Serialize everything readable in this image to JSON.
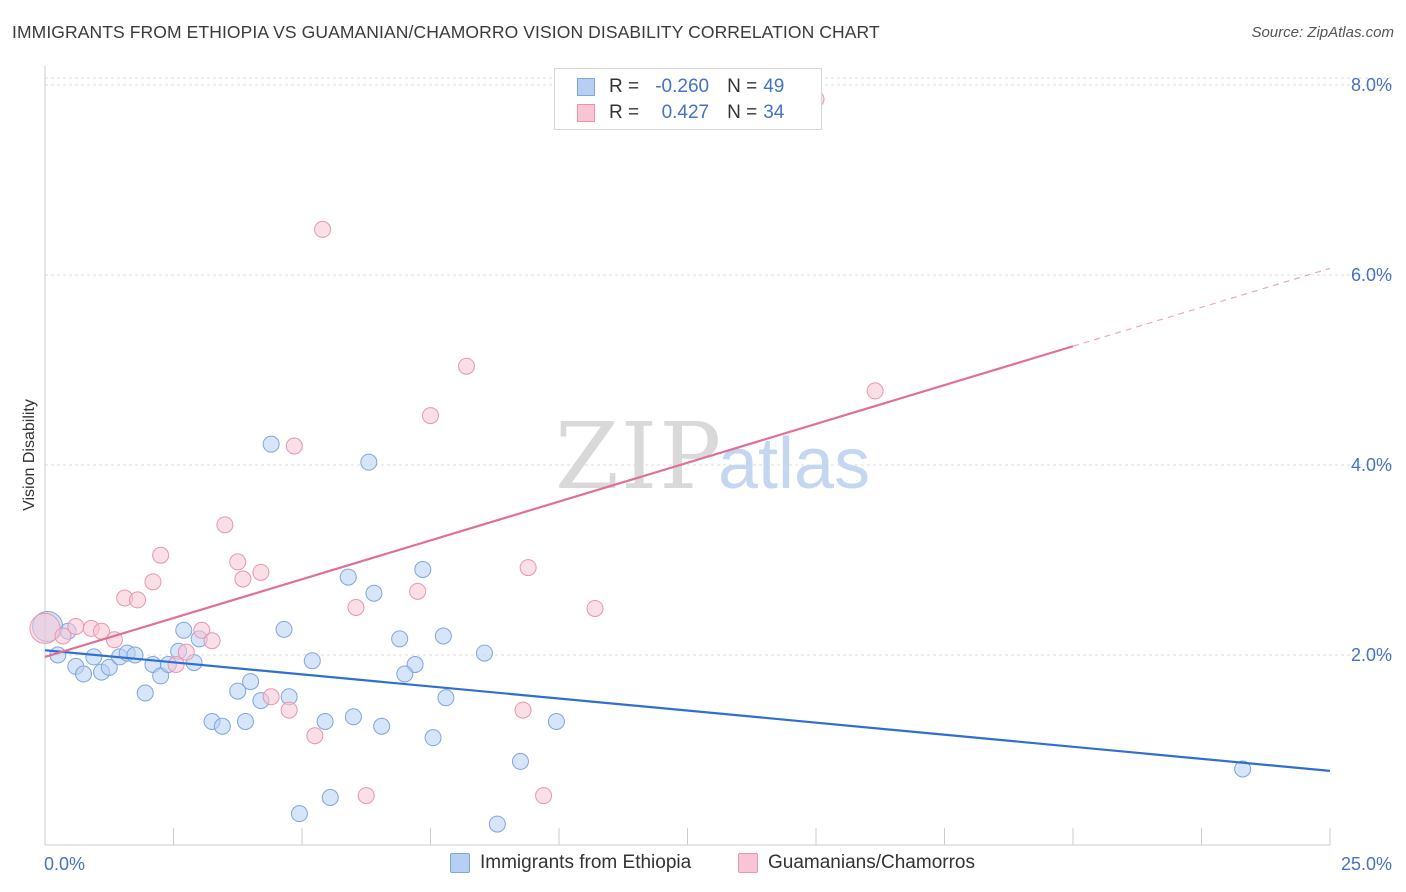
{
  "header": {
    "title": "IMMIGRANTS FROM ETHIOPIA VS GUAMANIAN/CHAMORRO VISION DISABILITY CORRELATION CHART",
    "source": "Source: ZipAtlas.com"
  },
  "watermark": {
    "zip": "ZIP",
    "atlas": "atlas"
  },
  "legend": {
    "r_key": "R =",
    "n_key": "N =",
    "rows": [
      {
        "name": "Immigrants from Ethiopia",
        "r": "-0.260",
        "n": "49"
      },
      {
        "name": "Guamanians/Chamorros",
        "r": "0.427",
        "n": "34"
      }
    ]
  },
  "colors": {
    "blue_fill": "#b7cff3",
    "blue_stroke": "#7fa6e0",
    "blue_line": "#2f6fd0",
    "pink_fill": "#f7c5d3",
    "pink_stroke": "#e995b0",
    "pink_line": "#e07099",
    "grid": "#dddddd",
    "axis": "#cccccc",
    "tick_text": "#4472c4"
  },
  "chart_data": {
    "type": "scatter",
    "title": "IMMIGRANTS FROM ETHIOPIA VS GUAMANIAN/CHAMORRO VISION DISABILITY CORRELATION CHART",
    "xlabel": "",
    "ylabel": "Vision Disability",
    "xlim": [
      0,
      25
    ],
    "ylim": [
      0,
      8.2
    ],
    "x_tick_labels": [
      "0.0%",
      "25.0%"
    ],
    "y_ticks": [
      2,
      4,
      6,
      8
    ],
    "y_tick_labels": [
      "2.0%",
      "4.0%",
      "6.0%",
      "8.0%"
    ],
    "grid": true,
    "legend_position": "top-center",
    "series": [
      {
        "name": "Immigrants from Ethiopia",
        "r": -0.26,
        "n": 49,
        "trend": {
          "x0": 0.0,
          "y0": 2.05,
          "x1": 25.0,
          "y1": 0.78
        },
        "points": [
          [
            0.05,
            2.3
          ],
          [
            0.25,
            2.0
          ],
          [
            0.45,
            2.25
          ],
          [
            0.6,
            1.88
          ],
          [
            0.75,
            1.8
          ],
          [
            0.95,
            1.98
          ],
          [
            1.1,
            1.82
          ],
          [
            1.25,
            1.87
          ],
          [
            1.45,
            1.98
          ],
          [
            1.6,
            2.02
          ],
          [
            1.75,
            2.0
          ],
          [
            1.95,
            1.6
          ],
          [
            2.1,
            1.9
          ],
          [
            2.25,
            1.78
          ],
          [
            2.4,
            1.9
          ],
          [
            2.6,
            2.04
          ],
          [
            2.7,
            2.26
          ],
          [
            2.9,
            1.92
          ],
          [
            3.0,
            2.17
          ],
          [
            3.25,
            1.3
          ],
          [
            3.45,
            1.25
          ],
          [
            3.75,
            1.62
          ],
          [
            3.9,
            1.3
          ],
          [
            4.0,
            1.72
          ],
          [
            4.2,
            1.52
          ],
          [
            4.4,
            4.22
          ],
          [
            4.65,
            2.27
          ],
          [
            4.75,
            1.56
          ],
          [
            4.95,
            0.33
          ],
          [
            5.2,
            1.94
          ],
          [
            5.45,
            1.3
          ],
          [
            5.55,
            0.5
          ],
          [
            5.9,
            2.82
          ],
          [
            6.0,
            1.35
          ],
          [
            6.3,
            4.03
          ],
          [
            6.4,
            2.65
          ],
          [
            6.55,
            1.25
          ],
          [
            6.9,
            2.17
          ],
          [
            7.2,
            1.9
          ],
          [
            7.0,
            1.8
          ],
          [
            7.35,
            2.9
          ],
          [
            7.55,
            1.13
          ],
          [
            7.75,
            2.2
          ],
          [
            7.8,
            1.55
          ],
          [
            8.55,
            2.02
          ],
          [
            8.8,
            0.22
          ],
          [
            9.25,
            0.88
          ],
          [
            9.95,
            1.3
          ],
          [
            23.3,
            0.8
          ]
        ]
      },
      {
        "name": "Guamanians/Chamorros",
        "r": 0.427,
        "n": 34,
        "trend": {
          "x0": 0.0,
          "y0": 1.98,
          "x1": 20.0,
          "y1": 5.25,
          "dash_to_x": 25.0,
          "dash_to_y": 6.07
        },
        "points": [
          [
            0.0,
            2.28
          ],
          [
            0.35,
            2.2
          ],
          [
            0.6,
            2.3
          ],
          [
            0.9,
            2.28
          ],
          [
            1.1,
            2.25
          ],
          [
            1.35,
            2.16
          ],
          [
            1.55,
            2.6
          ],
          [
            1.8,
            2.58
          ],
          [
            2.1,
            2.77
          ],
          [
            2.25,
            3.05
          ],
          [
            2.55,
            1.9
          ],
          [
            2.75,
            2.03
          ],
          [
            3.05,
            2.26
          ],
          [
            3.25,
            2.15
          ],
          [
            3.5,
            3.37
          ],
          [
            3.75,
            2.98
          ],
          [
            3.85,
            2.8
          ],
          [
            4.2,
            2.87
          ],
          [
            4.4,
            1.56
          ],
          [
            4.75,
            1.42
          ],
          [
            4.85,
            4.2
          ],
          [
            5.25,
            1.15
          ],
          [
            5.4,
            6.48
          ],
          [
            6.05,
            2.5
          ],
          [
            6.25,
            0.52
          ],
          [
            7.25,
            2.67
          ],
          [
            7.5,
            4.52
          ],
          [
            8.2,
            5.04
          ],
          [
            9.3,
            1.42
          ],
          [
            9.4,
            2.92
          ],
          [
            9.7,
            0.52
          ],
          [
            10.7,
            2.49
          ],
          [
            15.0,
            7.85
          ],
          [
            16.15,
            4.78
          ]
        ]
      }
    ]
  },
  "x_axis": {
    "left_label": "0.0%",
    "right_label": "25.0%"
  }
}
